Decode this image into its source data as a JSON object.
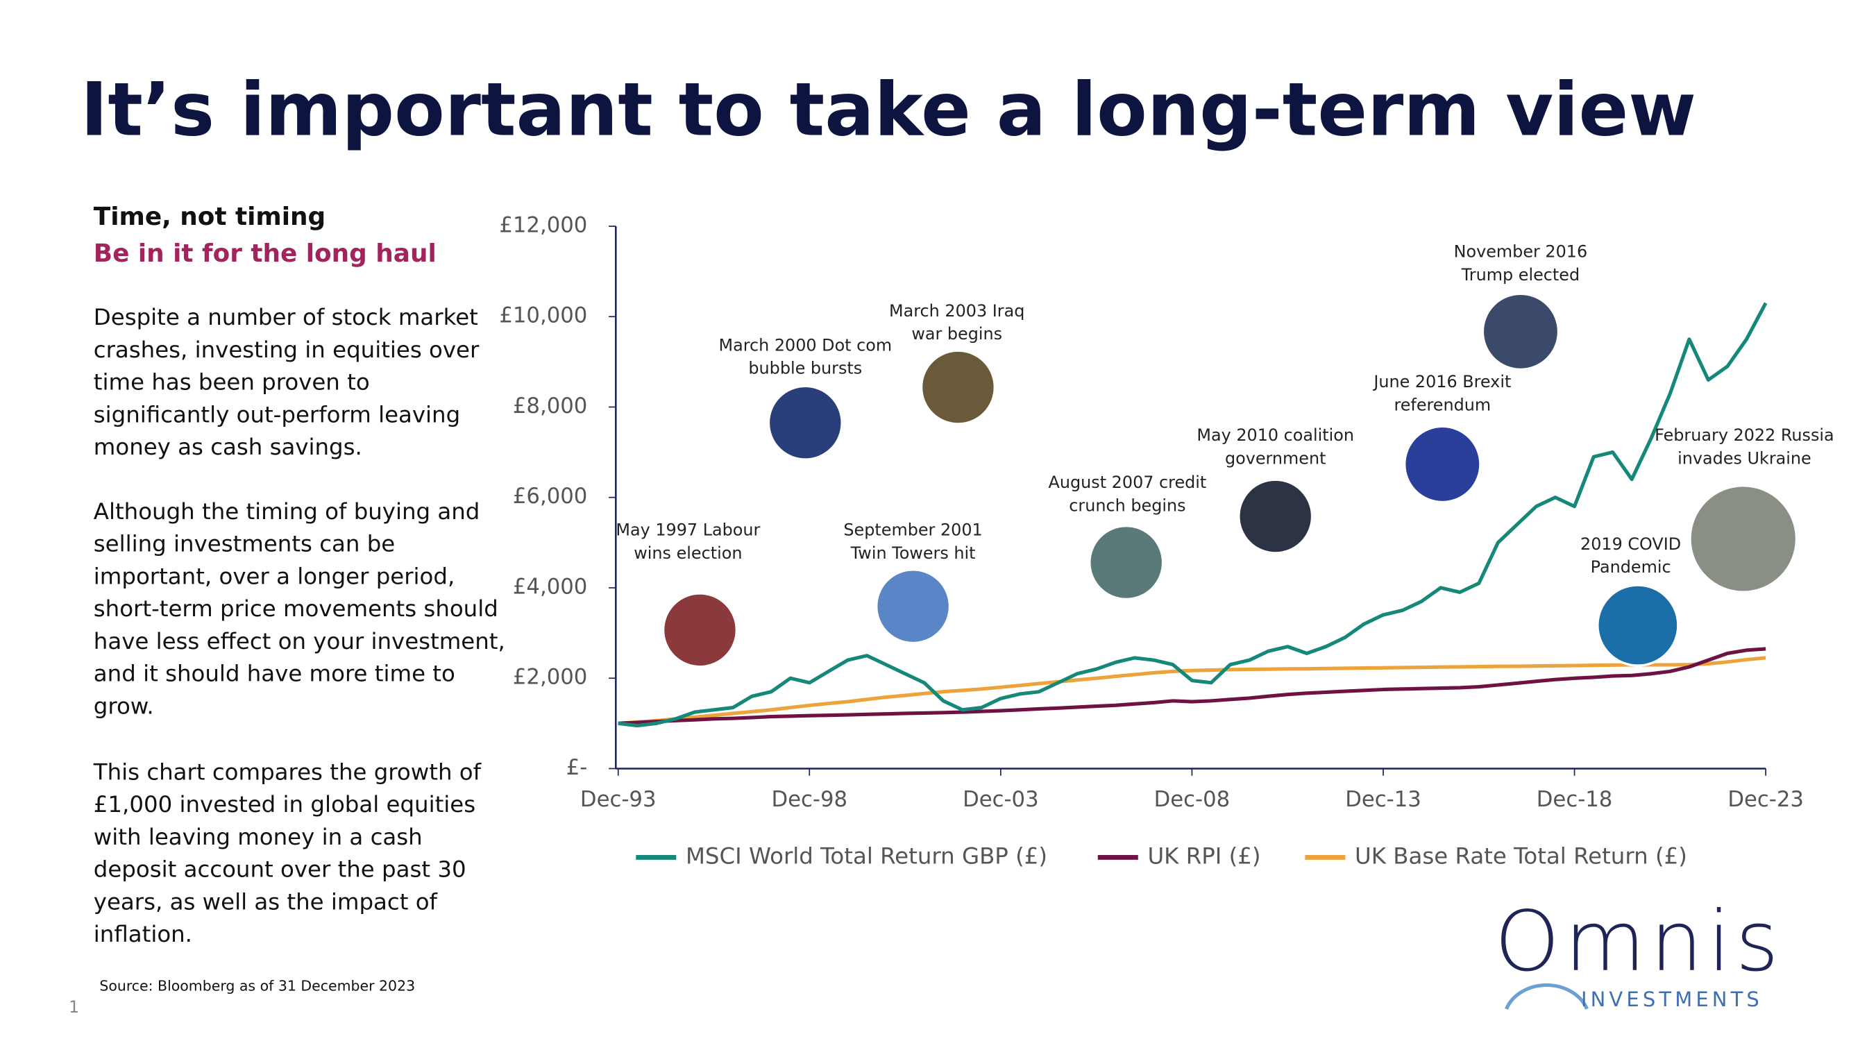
{
  "header": {
    "title": "It’s important to take a long-term view"
  },
  "sidebar": {
    "heading": "Time, not timing",
    "subheading": "Be in it for the long haul",
    "paragraphs": [
      [
        "Despite a number of stock market",
        "crashes, investing in equities over",
        "time has been proven to",
        "significantly out-perform leaving",
        "money as cash savings."
      ],
      [
        "Although the timing of buying and",
        "selling investments can be",
        "important, over a longer period,",
        "short-term price movements should",
        "have less effect on your investment,",
        "and it should have more time to",
        "grow."
      ],
      [
        "This chart compares the growth of",
        "£1,000 invested in global equities",
        "with leaving money in a cash",
        "deposit account over the past 30",
        "years, as well as the impact of",
        "inflation."
      ]
    ]
  },
  "footer": {
    "source": "Source: Bloomberg as of 31 December 2023",
    "page": "1",
    "logo": "Omnis",
    "logo_sub": "INVESTMENTS"
  },
  "chart_data": {
    "type": "line",
    "categories": [
      "Dec-93",
      null,
      null,
      null,
      null,
      null,
      null,
      null,
      null,
      null,
      "Dec-98",
      null,
      null,
      null,
      null,
      null,
      null,
      null,
      null,
      null,
      "Dec-03",
      null,
      null,
      null,
      null,
      null,
      null,
      null,
      null,
      null,
      "Dec-08",
      null,
      null,
      null,
      null,
      null,
      null,
      null,
      null,
      null,
      "Dec-13",
      null,
      null,
      null,
      null,
      null,
      null,
      null,
      null,
      null,
      "Dec-18",
      null,
      null,
      null,
      null,
      null,
      null,
      null,
      null,
      null,
      "Dec-23"
    ],
    "ylim": [
      0,
      12000
    ],
    "yticks": [
      {
        "value": 0,
        "label": "£-"
      },
      {
        "value": 2000,
        "label": "£2,000"
      },
      {
        "value": 4000,
        "label": "£4,000"
      },
      {
        "value": 6000,
        "label": "£6,000"
      },
      {
        "value": 8000,
        "label": "£8,000"
      },
      {
        "value": 10000,
        "label": "£10,000"
      },
      {
        "value": 12000,
        "label": "£12,000"
      }
    ],
    "grid": false,
    "series": [
      {
        "name": "MSCI World Total Return GBP (£)",
        "color": "#16887a",
        "values": [
          1000,
          950,
          1000,
          1100,
          1250,
          1300,
          1350,
          1600,
          1700,
          2000,
          1900,
          2150,
          2400,
          2500,
          2300,
          2100,
          1900,
          1500,
          1300,
          1350,
          1550,
          1650,
          1700,
          1900,
          2100,
          2200,
          2350,
          2450,
          2400,
          2300,
          1950,
          1900,
          2300,
          2400,
          2600,
          2700,
          2550,
          2700,
          2900,
          3200,
          3400,
          3500,
          3700,
          4000,
          3900,
          4100,
          5000,
          5400,
          5800,
          6000,
          5800,
          6900,
          7000,
          6400,
          7300,
          8300,
          9500,
          8600,
          8900,
          9500,
          10300
        ]
      },
      {
        "name": "UK RPI (£)",
        "color": "#6e1244",
        "values": [
          1000,
          1020,
          1040,
          1060,
          1080,
          1100,
          1110,
          1130,
          1150,
          1160,
          1170,
          1180,
          1190,
          1200,
          1210,
          1220,
          1230,
          1240,
          1250,
          1265,
          1280,
          1300,
          1320,
          1340,
          1360,
          1380,
          1400,
          1430,
          1460,
          1500,
          1480,
          1500,
          1530,
          1560,
          1600,
          1640,
          1670,
          1690,
          1710,
          1730,
          1750,
          1760,
          1770,
          1780,
          1790,
          1810,
          1850,
          1890,
          1930,
          1970,
          2000,
          2020,
          2050,
          2060,
          2100,
          2150,
          2250,
          2400,
          2550,
          2620,
          2650
        ]
      },
      {
        "name": "UK Base Rate Total Return (£)",
        "color": "#eda33b",
        "values": [
          1000,
          1030,
          1060,
          1100,
          1140,
          1180,
          1220,
          1260,
          1300,
          1350,
          1400,
          1440,
          1480,
          1530,
          1580,
          1620,
          1660,
          1700,
          1730,
          1760,
          1800,
          1840,
          1880,
          1920,
          1960,
          2000,
          2040,
          2080,
          2120,
          2150,
          2170,
          2180,
          2190,
          2195,
          2200,
          2205,
          2210,
          2215,
          2220,
          2225,
          2230,
          2235,
          2240,
          2245,
          2250,
          2255,
          2260,
          2265,
          2270,
          2275,
          2280,
          2285,
          2290,
          2295,
          2295,
          2295,
          2300,
          2320,
          2360,
          2410,
          2450
        ]
      }
    ],
    "annotations": [
      [
        "May 1997 Labour",
        "wins election"
      ],
      [
        "March 2000 Dot com",
        "bubble bursts"
      ],
      [
        "March 2003 Iraq",
        "war begins"
      ],
      [
        "September 2001",
        "Twin Towers hit"
      ],
      [
        "August 2007 credit",
        "crunch begins"
      ],
      [
        "May 2010 coalition",
        "government"
      ],
      [
        "June 2016 Brexit",
        "referendum"
      ],
      [
        "November 2016",
        "Trump elected"
      ],
      [
        "2019 COVID",
        "Pandemic"
      ],
      [
        "February 2022 Russia",
        "invades Ukraine"
      ]
    ]
  }
}
